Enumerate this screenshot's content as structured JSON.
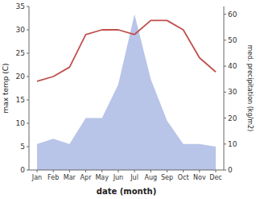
{
  "chart_data": {
    "type": "line",
    "xlabel": "date (month)",
    "ylabel": "max temp (C)",
    "y2label": "med. precipitation (kg/m2)",
    "categories": [
      "Jan",
      "Feb",
      "Mar",
      "Apr",
      "May",
      "Jun",
      "Jul",
      "Aug",
      "Sep",
      "Oct",
      "Nov",
      "Dec"
    ],
    "series": [
      {
        "type": "area",
        "axis": "y2",
        "color": "#b8c4e8",
        "values": [
          10,
          12,
          10,
          20,
          20,
          33,
          60,
          35,
          19,
          10,
          10,
          9
        ]
      },
      {
        "type": "line",
        "color": "#c0504d",
        "values": [
          19,
          20,
          22,
          29,
          30,
          30,
          29,
          32,
          32,
          30,
          24,
          21
        ]
      }
    ],
    "ylim": [
      0,
      35
    ],
    "yticks": [
      0,
      5,
      10,
      15,
      20,
      25,
      30,
      35
    ],
    "y2lim": [
      0,
      63
    ],
    "y2ticks": [
      0,
      10,
      20,
      30,
      40,
      50,
      60
    ],
    "grid": false
  }
}
